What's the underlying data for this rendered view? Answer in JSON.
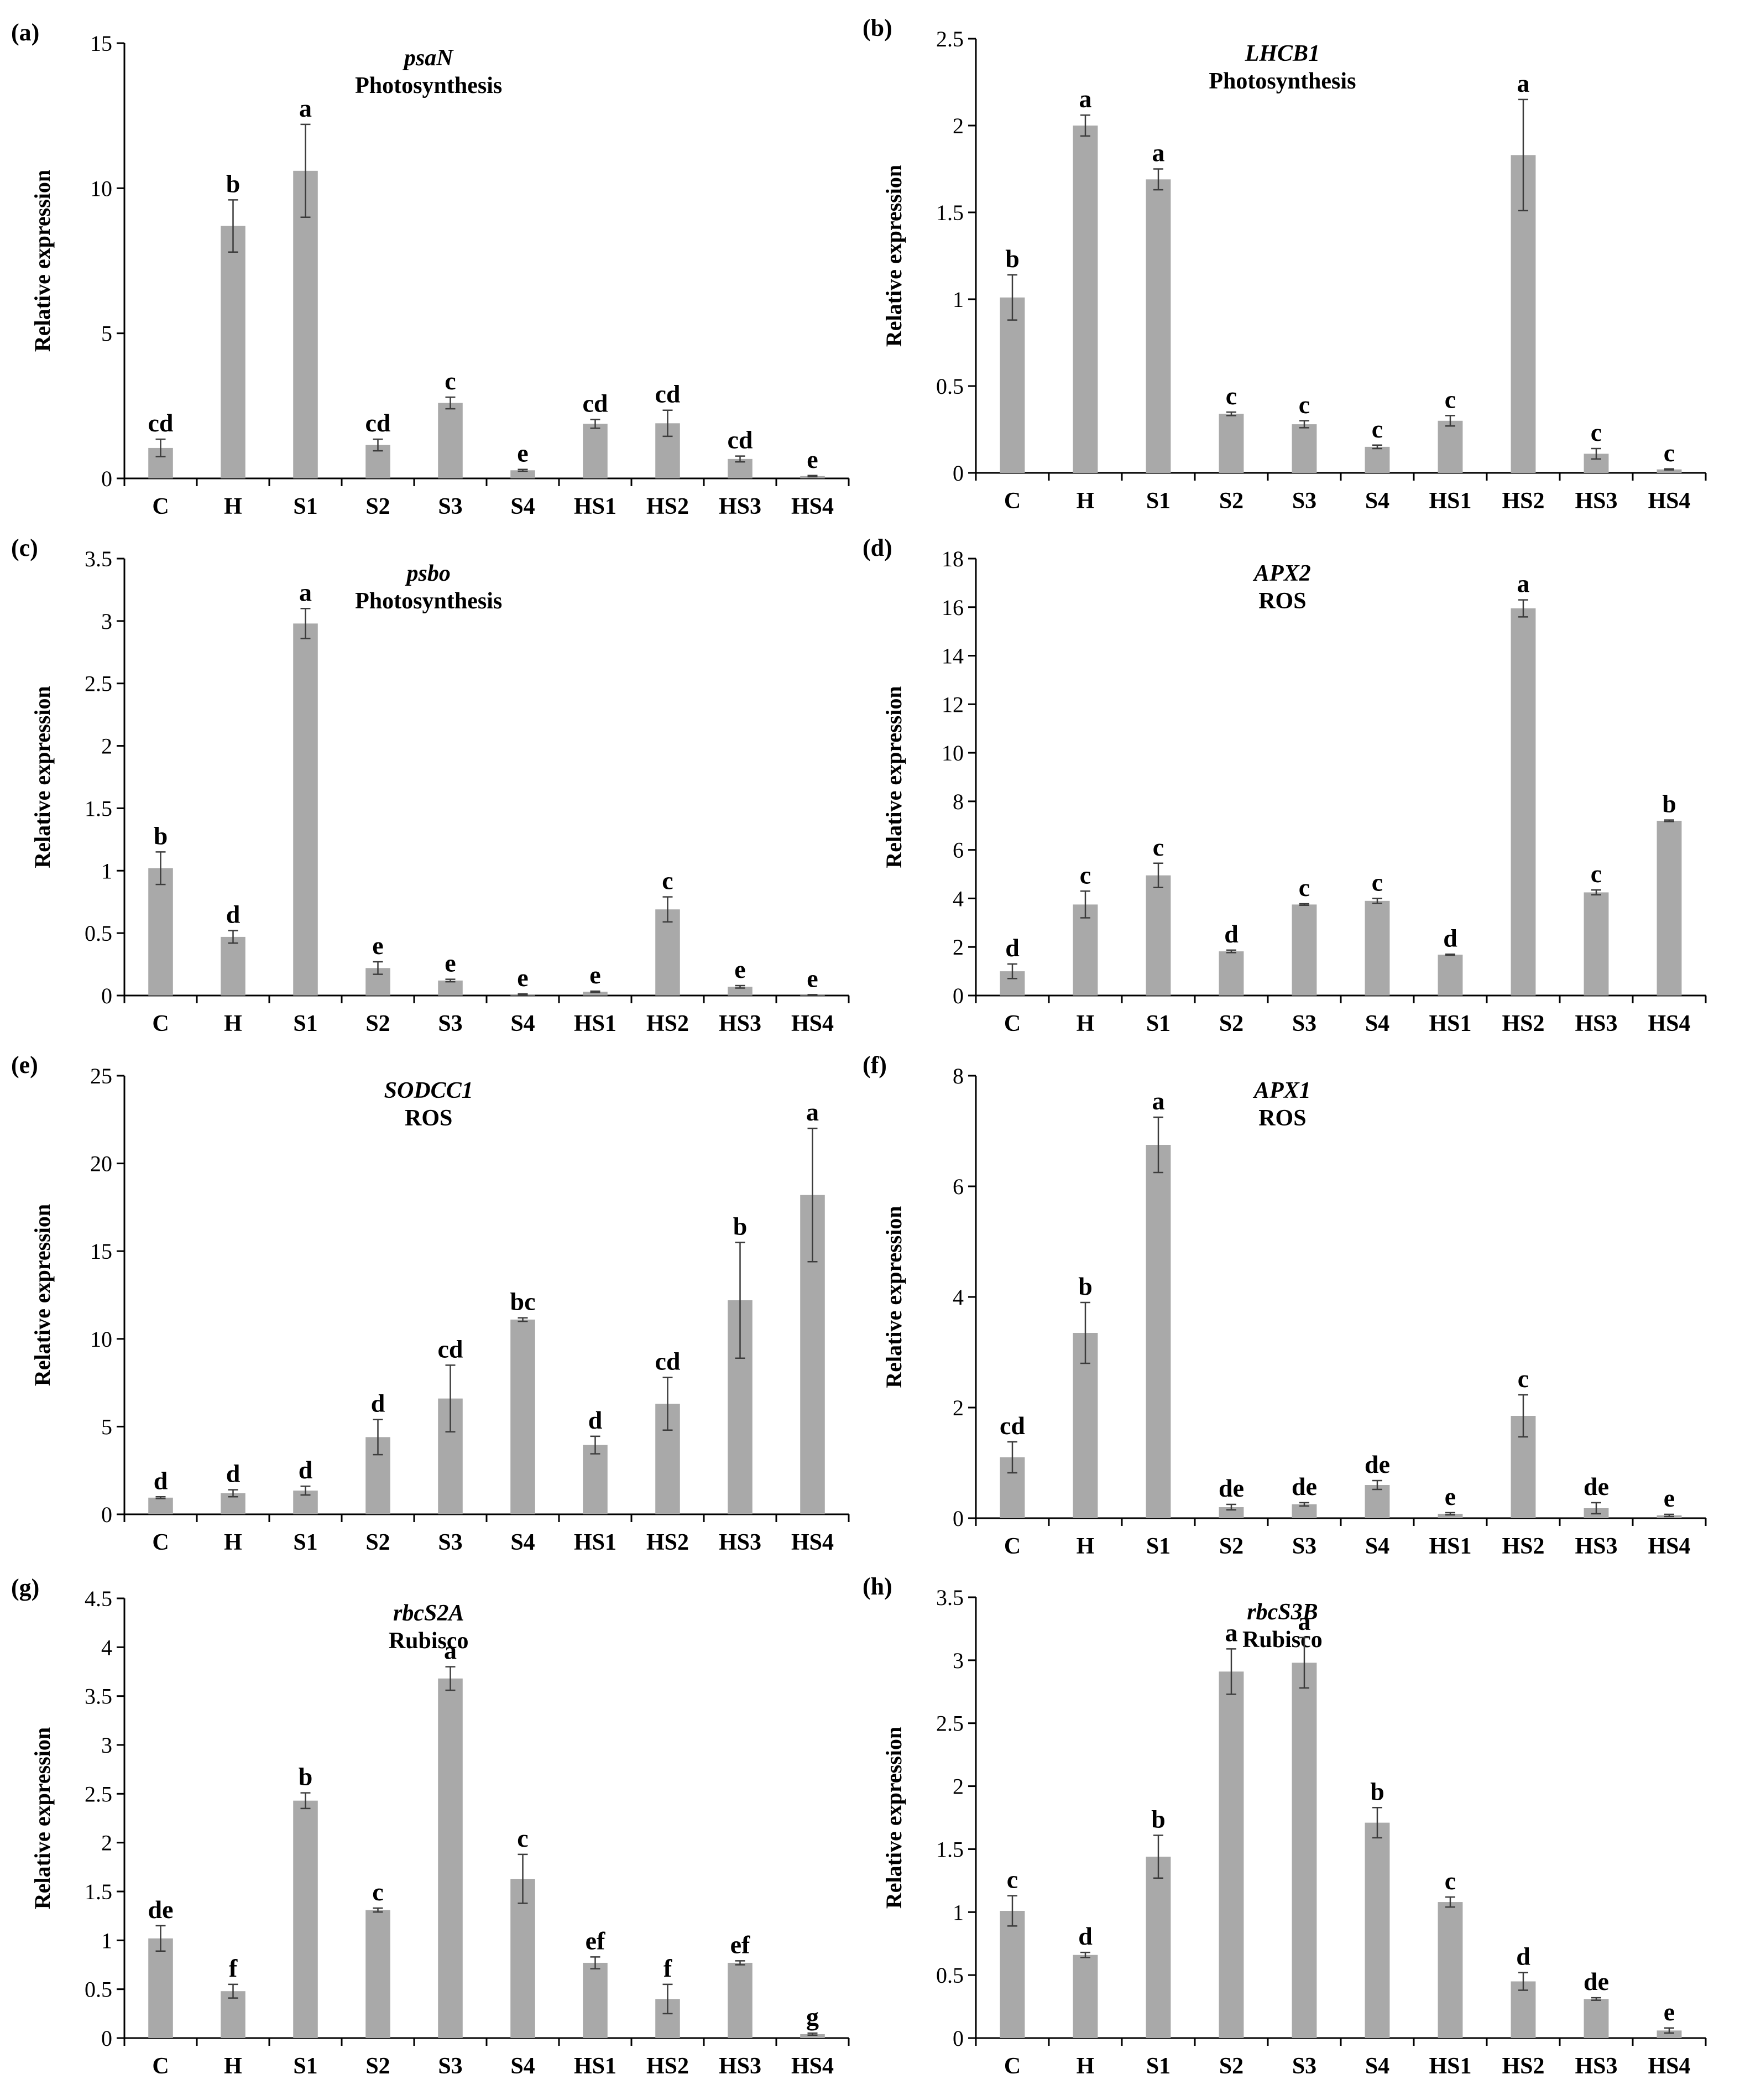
{
  "style": {
    "bar_color": "#a9a9a9",
    "error_color": "#3c3c3c",
    "axis_color": "#000000",
    "text_color": "#000000"
  },
  "chart_data": [
    {
      "panel": "(a)",
      "type": "bar",
      "gene": "psaN",
      "category": "Photosynthesis",
      "ylabel": "Relative expression",
      "ylim": [
        0,
        15
      ],
      "yticks": [
        "0",
        "5",
        "10",
        "15"
      ],
      "categories": [
        "C",
        "H",
        "S1",
        "S2",
        "S3",
        "S4",
        "HS1",
        "HS2",
        "HS3",
        "HS4"
      ],
      "values": [
        1.05,
        8.7,
        10.6,
        1.15,
        2.6,
        0.28,
        1.88,
        1.9,
        0.67,
        0.08
      ],
      "errors": [
        0.3,
        0.9,
        1.6,
        0.2,
        0.2,
        0.03,
        0.15,
        0.45,
        0.1,
        0.02
      ],
      "letters": [
        "cd",
        "b",
        "a",
        "cd",
        "c",
        "e",
        "cd",
        "cd",
        "cd",
        "e"
      ]
    },
    {
      "panel": "(b)",
      "type": "bar",
      "gene": "LHCB1",
      "category": "Photosynthesis",
      "ylabel": "Relative expression",
      "ylim": [
        0,
        2.5
      ],
      "yticks": [
        "0",
        "0.5",
        "1",
        "1.5",
        "2",
        "2.5"
      ],
      "categories": [
        "C",
        "H",
        "S1",
        "S2",
        "S3",
        "S4",
        "HS1",
        "HS2",
        "HS3",
        "HS4"
      ],
      "values": [
        1.01,
        2.0,
        1.69,
        0.34,
        0.28,
        0.15,
        0.3,
        1.83,
        0.11,
        0.02
      ],
      "errors": [
        0.13,
        0.06,
        0.06,
        0.01,
        0.02,
        0.01,
        0.03,
        0.32,
        0.03,
        0.003
      ],
      "letters": [
        "b",
        "a",
        "a",
        "c",
        "c",
        "c",
        "c",
        "a",
        "c",
        "c"
      ]
    },
    {
      "panel": "(c)",
      "type": "bar",
      "gene": "psbo",
      "category": "Photosynthesis",
      "ylabel": "Relative expression",
      "ylim": [
        0,
        3.5
      ],
      "yticks": [
        "0",
        "0.5",
        "1",
        "1.5",
        "2",
        "2.5",
        "3",
        "3.5"
      ],
      "categories": [
        "C",
        "H",
        "S1",
        "S2",
        "S3",
        "S4",
        "HS1",
        "HS2",
        "HS3",
        "HS4"
      ],
      "values": [
        1.02,
        0.47,
        2.98,
        0.22,
        0.12,
        0.01,
        0.03,
        0.69,
        0.07,
        0.005
      ],
      "errors": [
        0.13,
        0.05,
        0.12,
        0.05,
        0.01,
        0.003,
        0.005,
        0.1,
        0.01,
        0.002
      ],
      "letters": [
        "b",
        "d",
        "a",
        "e",
        "e",
        "e",
        "e",
        "c",
        "e",
        "e"
      ]
    },
    {
      "panel": "(d)",
      "type": "bar",
      "gene": "APX2",
      "category": "ROS",
      "ylabel": "Relative expression",
      "ylim": [
        0,
        18
      ],
      "yticks": [
        "0",
        "2",
        "4",
        "6",
        "8",
        "10",
        "12",
        "14",
        "16",
        "18"
      ],
      "categories": [
        "C",
        "H",
        "S1",
        "S2",
        "S3",
        "S4",
        "HS1",
        "HS2",
        "HS3",
        "HS4"
      ],
      "values": [
        1.0,
        3.75,
        4.95,
        1.82,
        3.75,
        3.9,
        1.68,
        15.95,
        4.25,
        7.2
      ],
      "errors": [
        0.3,
        0.55,
        0.5,
        0.05,
        0.03,
        0.1,
        0.02,
        0.35,
        0.1,
        0.03
      ],
      "letters": [
        "d",
        "c",
        "c",
        "d",
        "c",
        "c",
        "d",
        "a",
        "c",
        "b"
      ]
    },
    {
      "panel": "(e)",
      "type": "bar",
      "gene": "SODCC1",
      "category": "ROS",
      "ylabel": "Relative expression",
      "ylim": [
        0,
        25
      ],
      "yticks": [
        "0",
        "5",
        "10",
        "15",
        "20",
        "25"
      ],
      "categories": [
        "C",
        "H",
        "S1",
        "S2",
        "S3",
        "S4",
        "HS1",
        "HS2",
        "HS3",
        "HS4"
      ],
      "values": [
        0.95,
        1.2,
        1.35,
        4.4,
        6.6,
        11.1,
        3.95,
        6.3,
        12.2,
        18.2
      ],
      "errors": [
        0.05,
        0.2,
        0.25,
        1.0,
        1.9,
        0.1,
        0.5,
        1.5,
        3.3,
        3.8
      ],
      "letters": [
        "d",
        "d",
        "d",
        "d",
        "cd",
        "bc",
        "d",
        "cd",
        "b",
        "a"
      ]
    },
    {
      "panel": "(f)",
      "type": "bar",
      "gene": "APX1",
      "category": "ROS",
      "ylabel": "Relative expression",
      "ylim": [
        0,
        8
      ],
      "yticks": [
        "0",
        "2",
        "4",
        "6",
        "8"
      ],
      "categories": [
        "C",
        "H",
        "S1",
        "S2",
        "S3",
        "S4",
        "HS1",
        "HS2",
        "HS3",
        "HS4"
      ],
      "values": [
        1.1,
        3.35,
        6.75,
        0.2,
        0.25,
        0.6,
        0.08,
        1.85,
        0.18,
        0.05
      ],
      "errors": [
        0.28,
        0.55,
        0.5,
        0.05,
        0.03,
        0.08,
        0.02,
        0.38,
        0.1,
        0.02
      ],
      "letters": [
        "cd",
        "b",
        "a",
        "de",
        "de",
        "de",
        "e",
        "c",
        "de",
        "e"
      ]
    },
    {
      "panel": "(g)",
      "type": "bar",
      "gene": "rbcS2A",
      "category": "Rubisco",
      "ylabel": "Relative expression",
      "ylim": [
        0,
        4.5
      ],
      "yticks": [
        "0",
        "0.5",
        "1",
        "1.5",
        "2",
        "2.5",
        "3",
        "3.5",
        "4",
        "4.5"
      ],
      "categories": [
        "C",
        "H",
        "S1",
        "S2",
        "S3",
        "S4",
        "HS1",
        "HS2",
        "HS3",
        "HS4"
      ],
      "values": [
        1.02,
        0.48,
        2.43,
        1.31,
        3.68,
        1.63,
        0.77,
        0.4,
        0.77,
        0.04
      ],
      "errors": [
        0.13,
        0.07,
        0.08,
        0.02,
        0.12,
        0.25,
        0.06,
        0.15,
        0.02,
        0.01
      ],
      "letters": [
        "de",
        "f",
        "b",
        "c",
        "a",
        "c",
        "ef",
        "f",
        "ef",
        "g"
      ]
    },
    {
      "panel": "(h)",
      "type": "bar",
      "gene": "rbcS3B",
      "category": "Rubisco",
      "ylabel": "Relative expression",
      "ylim": [
        0,
        3.5
      ],
      "yticks": [
        "0",
        "0.5",
        "1",
        "1.5",
        "2",
        "2.5",
        "3",
        "3.5"
      ],
      "categories": [
        "C",
        "H",
        "S1",
        "S2",
        "S3",
        "S4",
        "HS1",
        "HS2",
        "HS3",
        "HS4"
      ],
      "values": [
        1.01,
        0.66,
        1.44,
        2.91,
        2.98,
        1.71,
        1.08,
        0.45,
        0.31,
        0.06
      ],
      "errors": [
        0.12,
        0.02,
        0.17,
        0.18,
        0.2,
        0.12,
        0.04,
        0.07,
        0.01,
        0.02
      ],
      "letters": [
        "c",
        "d",
        "b",
        "a",
        "a",
        "b",
        "c",
        "d",
        "de",
        "e"
      ]
    }
  ]
}
